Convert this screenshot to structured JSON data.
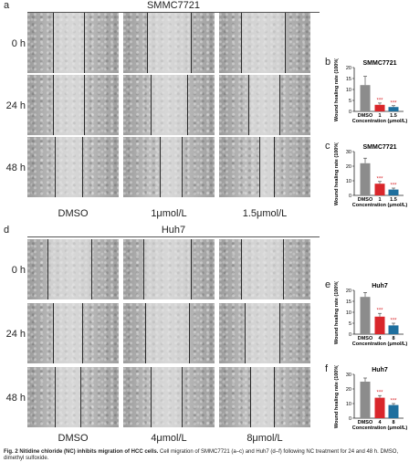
{
  "figure": {
    "top_group": {
      "letter": "a",
      "title": "SMMC7721",
      "row_labels": [
        "0 h",
        "24 h",
        "48 h"
      ],
      "col_labels": [
        "DMSO",
        "1μmol/L",
        "1.5μmol/L"
      ]
    },
    "bottom_group": {
      "letter": "d",
      "title": "Huh7",
      "row_labels": [
        "0 h",
        "24 h",
        "48 h"
      ],
      "col_labels": [
        "DMSO",
        "4μmol/L",
        "8μmol/L"
      ]
    },
    "caption_bold": "Fig. 2 Nitidine chloride (NC) inhibits migration of HCC cells.",
    "caption_rest": " Cell migration of SMMC7721 (a–c) and Huh7 (d–f) following NC treatment for 24 and 48 h. DMSO, dimethyl sulfoxide."
  },
  "colors": {
    "dmso": "#8c8c8c",
    "low": "#d9262b",
    "high": "#1f6f9e",
    "sig": "#d9262b"
  },
  "chart_data": [
    {
      "letter": "b",
      "type": "bar",
      "title": "SMMC7721",
      "ylabel": "Wound healing rate (100%)",
      "xlabel": "Concentration (μmol/L)",
      "categories": [
        "DMSO",
        "1",
        "1.5"
      ],
      "values": [
        12,
        3,
        2
      ],
      "errors": [
        4,
        0.8,
        0.6
      ],
      "significance": [
        "",
        "***",
        "***"
      ],
      "ylim": [
        0,
        20
      ],
      "yticks": [
        "0",
        "5",
        "10",
        "15",
        "20"
      ]
    },
    {
      "letter": "c",
      "type": "bar",
      "title": "SMMC7721",
      "ylabel": "Wound healing rate (100%)",
      "xlabel": "Concentration (μmol/L)",
      "categories": [
        "DMSO",
        "1",
        "1.5"
      ],
      "values": [
        22,
        8,
        4
      ],
      "errors": [
        3.5,
        1.5,
        1
      ],
      "significance": [
        "",
        "***",
        "***"
      ],
      "ylim": [
        0,
        30
      ],
      "yticks": [
        "0",
        "10",
        "20",
        "30"
      ]
    },
    {
      "letter": "e",
      "type": "bar",
      "title": "Huh7",
      "ylabel": "Wound healing rate (100%)",
      "xlabel": "Concentration (μmol/L)",
      "categories": [
        "DMSO",
        "4",
        "8"
      ],
      "values": [
        17,
        8,
        4
      ],
      "errors": [
        2,
        1.5,
        1
      ],
      "significance": [
        "",
        "***",
        "***"
      ],
      "ylim": [
        0,
        20
      ],
      "yticks": [
        "0",
        "5",
        "10",
        "15",
        "20"
      ]
    },
    {
      "letter": "f",
      "type": "bar",
      "title": "Huh7",
      "ylabel": "Wound healing rate (100%)",
      "xlabel": "Concentration (μmol/L)",
      "categories": [
        "DMSO",
        "4",
        "8"
      ],
      "values": [
        25,
        14,
        9
      ],
      "errors": [
        2.5,
        1.5,
        1
      ],
      "significance": [
        "",
        "***",
        "***"
      ],
      "ylim": [
        0,
        30
      ],
      "yticks": [
        "0",
        "10",
        "20",
        "30"
      ]
    }
  ]
}
